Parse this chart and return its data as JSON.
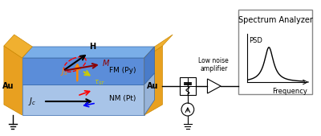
{
  "bg_color": "#ffffff",
  "au_color": "#E8A020",
  "au_top_color": "#F0B030",
  "au_edge_color": "#CC8800",
  "fm_color": "#5B8DD9",
  "fm_side_color": "#4A7CC9",
  "nm_color": "#A8C4E8",
  "nm_side_color": "#98B4D8",
  "top_color": "#7AAEE8",
  "title": "Spectrum Analyzer",
  "psd_label": "PSD",
  "freq_label": "Frequency",
  "amp_label": "Low noise\namplifier",
  "au_label": "Au",
  "fm_label": "FM (Py)",
  "nm_label": "NM (Pt)"
}
